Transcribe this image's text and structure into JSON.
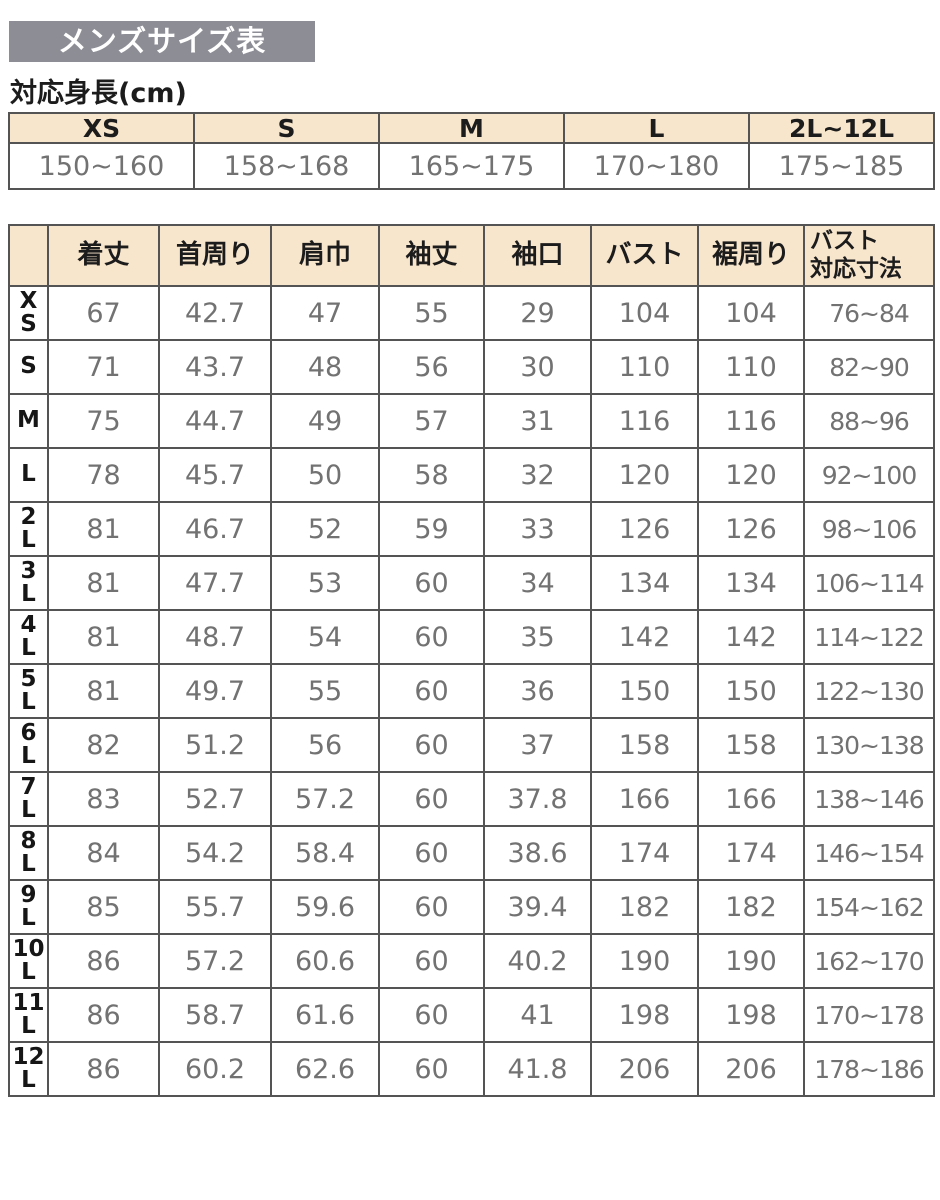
{
  "page": {
    "title": "メンズサイズ表",
    "subtitle": "対応身長(cm)"
  },
  "colors": {
    "title_bg": "#8d8d96",
    "header_bg": "#f8e6cc",
    "border": "#545454",
    "heading_text": "#1c1c1c",
    "number_text": "#727272"
  },
  "height_table": {
    "columns": [
      "XS",
      "S",
      "M",
      "L",
      "2L~12L"
    ],
    "values": [
      "150~160",
      "158~168",
      "165~175",
      "170~180",
      "175~185"
    ]
  },
  "size_table": {
    "corner": "",
    "columns": [
      "着丈",
      "首周り",
      "肩巾",
      "袖丈",
      "袖口",
      "バスト",
      "裾周り",
      "バスト\n対応寸法"
    ],
    "rows": [
      {
        "label": "X\nS",
        "values": [
          "67",
          "42.7",
          "47",
          "55",
          "29",
          "104",
          "104",
          "76~84"
        ]
      },
      {
        "label": "S",
        "values": [
          "71",
          "43.7",
          "48",
          "56",
          "30",
          "110",
          "110",
          "82~90"
        ]
      },
      {
        "label": "M",
        "values": [
          "75",
          "44.7",
          "49",
          "57",
          "31",
          "116",
          "116",
          "88~96"
        ]
      },
      {
        "label": "L",
        "values": [
          "78",
          "45.7",
          "50",
          "58",
          "32",
          "120",
          "120",
          "92~100"
        ]
      },
      {
        "label": "2\nL",
        "values": [
          "81",
          "46.7",
          "52",
          "59",
          "33",
          "126",
          "126",
          "98~106"
        ]
      },
      {
        "label": "3\nL",
        "values": [
          "81",
          "47.7",
          "53",
          "60",
          "34",
          "134",
          "134",
          "106~114"
        ]
      },
      {
        "label": "4\nL",
        "values": [
          "81",
          "48.7",
          "54",
          "60",
          "35",
          "142",
          "142",
          "114~122"
        ]
      },
      {
        "label": "5\nL",
        "values": [
          "81",
          "49.7",
          "55",
          "60",
          "36",
          "150",
          "150",
          "122~130"
        ]
      },
      {
        "label": "6\nL",
        "values": [
          "82",
          "51.2",
          "56",
          "60",
          "37",
          "158",
          "158",
          "130~138"
        ]
      },
      {
        "label": "7\nL",
        "values": [
          "83",
          "52.7",
          "57.2",
          "60",
          "37.8",
          "166",
          "166",
          "138~146"
        ]
      },
      {
        "label": "8\nL",
        "values": [
          "84",
          "54.2",
          "58.4",
          "60",
          "38.6",
          "174",
          "174",
          "146~154"
        ]
      },
      {
        "label": "9\nL",
        "values": [
          "85",
          "55.7",
          "59.6",
          "60",
          "39.4",
          "182",
          "182",
          "154~162"
        ]
      },
      {
        "label": "10\nL",
        "values": [
          "86",
          "57.2",
          "60.6",
          "60",
          "40.2",
          "190",
          "190",
          "162~170"
        ]
      },
      {
        "label": "11\nL",
        "values": [
          "86",
          "58.7",
          "61.6",
          "60",
          "41",
          "198",
          "198",
          "170~178"
        ]
      },
      {
        "label": "12\nL",
        "values": [
          "86",
          "60.2",
          "62.6",
          "60",
          "41.8",
          "206",
          "206",
          "178~186"
        ]
      }
    ]
  }
}
